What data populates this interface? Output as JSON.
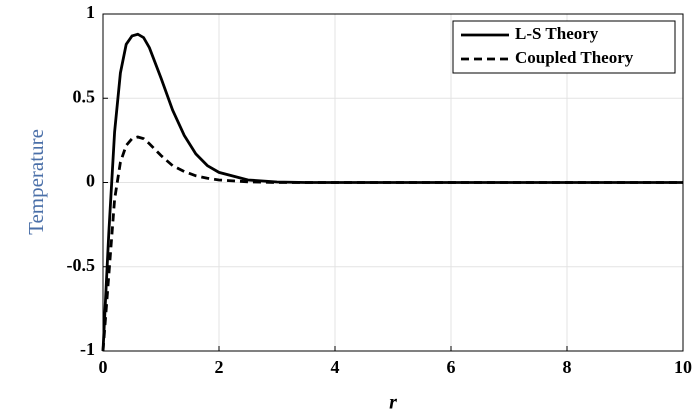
{
  "chart_data": {
    "type": "line",
    "x_label": "r",
    "y_label": "Temperature",
    "x": [
      0,
      0.1,
      0.2,
      0.3,
      0.4,
      0.5,
      0.6,
      0.7,
      0.8,
      1,
      1.2,
      1.4,
      1.6,
      1.8,
      2,
      2.5,
      3,
      3.5,
      4,
      5,
      6,
      7,
      8,
      9,
      10
    ],
    "series": [
      {
        "name": "L-S Theory",
        "color": "#000000",
        "style": "solid",
        "values": [
          -1,
          -0.3,
          0.3,
          0.65,
          0.82,
          0.87,
          0.88,
          0.86,
          0.8,
          0.62,
          0.43,
          0.28,
          0.17,
          0.1,
          0.06,
          0.015,
          0.003,
          0,
          0,
          0,
          0,
          0,
          0,
          0,
          0
        ]
      },
      {
        "name": "Coupled Theory",
        "color": "#000000",
        "style": "dashed",
        "values": [
          -1,
          -0.55,
          -0.1,
          0.12,
          0.22,
          0.26,
          0.27,
          0.26,
          0.23,
          0.16,
          0.1,
          0.065,
          0.04,
          0.025,
          0.015,
          0.004,
          0,
          0,
          0,
          0,
          0,
          0,
          0,
          0,
          0
        ]
      }
    ],
    "xlim": [
      0,
      10
    ],
    "xticks": [
      0,
      2,
      4,
      6,
      8,
      10
    ],
    "ylim": [
      -1,
      1
    ],
    "yticks": [
      -1,
      -0.5,
      0,
      0.5,
      1
    ],
    "grid": true,
    "legend": "upper right",
    "y_label_color": "#4a6fa8"
  }
}
